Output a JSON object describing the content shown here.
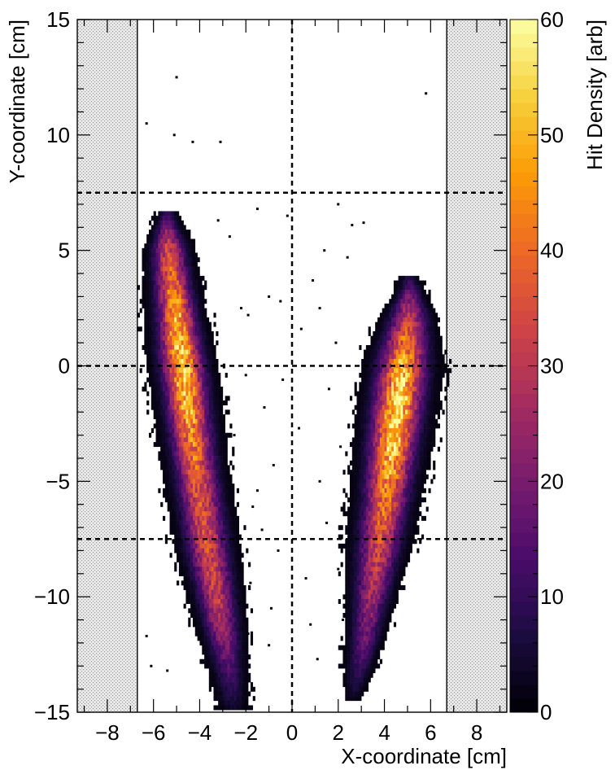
{
  "chart_data": {
    "type": "heatmap",
    "title": "",
    "xlabel": "X-coordinate [cm]",
    "ylabel": "Y-coordinate [cm]",
    "xlim": [
      -9.3,
      9.3
    ],
    "ylim": [
      -15,
      15
    ],
    "x_ticks": [
      -8,
      -6,
      -4,
      -2,
      0,
      2,
      4,
      6,
      8
    ],
    "y_ticks": [
      -15,
      -10,
      -5,
      0,
      5,
      10,
      15
    ],
    "colorbar": {
      "label": "Hit Density [arb]",
      "range": [
        0,
        60
      ],
      "ticks": [
        0,
        10,
        20,
        30,
        40,
        50,
        60
      ],
      "colormap": "inferno",
      "colors": [
        "#000004",
        "#1b0c41",
        "#4a0c6b",
        "#781c6d",
        "#a52c60",
        "#cf4446",
        "#ed6925",
        "#fb9b06",
        "#f7d13d",
        "#fcffa4"
      ]
    },
    "excluded_regions": [
      {
        "x": [
          -9.3,
          -6.7
        ],
        "fill": "dotted grey"
      },
      {
        "x": [
          6.7,
          9.3
        ],
        "fill": "dotted grey"
      }
    ],
    "reference_lines": {
      "vertical_x": [
        0
      ],
      "horizontal_y": [
        7.5,
        0,
        -7.5
      ],
      "style": "dashed"
    },
    "bin_size": [
      0.1,
      0.2
    ],
    "seed": 7,
    "bands": [
      {
        "name": "left",
        "spine": [
          {
            "y": 6.5,
            "x": -5.45
          },
          {
            "y": 6.0,
            "x": -5.45
          },
          {
            "y": 4.0,
            "x": -5.3
          },
          {
            "y": 2.0,
            "x": -5.05
          },
          {
            "y": 0.0,
            "x": -4.8
          },
          {
            "y": -2.0,
            "x": -4.55
          },
          {
            "y": -4.0,
            "x": -4.3
          },
          {
            "y": -6.0,
            "x": -4.0
          },
          {
            "y": -8.0,
            "x": -3.7
          },
          {
            "y": -10.0,
            "x": -3.35
          },
          {
            "y": -12.0,
            "x": -3.0
          },
          {
            "y": -14.0,
            "x": -2.7
          },
          {
            "y": -15.0,
            "x": -2.6
          }
        ],
        "half_width": [
          {
            "y": 6.5,
            "w": 0.35
          },
          {
            "y": 5.0,
            "w": 0.7
          },
          {
            "y": 0.0,
            "w": 0.9
          },
          {
            "y": -8.0,
            "w": 0.9
          },
          {
            "y": -15.0,
            "w": 0.55
          }
        ],
        "peak": [
          {
            "y": 6.5,
            "v": 10
          },
          {
            "y": 5.0,
            "v": 34
          },
          {
            "y": 2.0,
            "v": 48
          },
          {
            "y": 0.0,
            "v": 55
          },
          {
            "y": -2.0,
            "v": 48
          },
          {
            "y": -5.0,
            "v": 36
          },
          {
            "y": -8.0,
            "v": 34
          },
          {
            "y": -11.0,
            "v": 28
          },
          {
            "y": -13.0,
            "v": 15
          },
          {
            "y": -15.0,
            "v": 4
          }
        ]
      },
      {
        "name": "right",
        "spine": [
          {
            "y": 3.7,
            "x": 5.05
          },
          {
            "y": 2.0,
            "x": 5.0
          },
          {
            "y": 0.0,
            "x": 4.75
          },
          {
            "y": -2.0,
            "x": 4.5
          },
          {
            "y": -4.0,
            "x": 4.25
          },
          {
            "y": -6.0,
            "x": 4.0
          },
          {
            "y": -8.0,
            "x": 3.7
          },
          {
            "y": -10.0,
            "x": 3.4
          },
          {
            "y": -12.0,
            "x": 3.1
          },
          {
            "y": -13.5,
            "x": 2.8
          },
          {
            "y": -14.5,
            "x": 2.6
          }
        ],
        "half_width": [
          {
            "y": 3.7,
            "w": 0.35
          },
          {
            "y": 2.0,
            "w": 0.8
          },
          {
            "y": 0.0,
            "w": 1.05
          },
          {
            "y": -4.0,
            "w": 1.0
          },
          {
            "y": -8.0,
            "w": 0.9
          },
          {
            "y": -14.5,
            "w": 0.4
          }
        ],
        "peak": [
          {
            "y": 3.7,
            "v": 8
          },
          {
            "y": 2.0,
            "v": 32
          },
          {
            "y": 0.0,
            "v": 48
          },
          {
            "y": -2.0,
            "v": 58
          },
          {
            "y": -4.0,
            "v": 50
          },
          {
            "y": -6.0,
            "v": 40
          },
          {
            "y": -8.0,
            "v": 33
          },
          {
            "y": -10.0,
            "v": 26
          },
          {
            "y": -12.0,
            "v": 18
          },
          {
            "y": -14.5,
            "v": 3
          }
        ]
      }
    ],
    "outlier_points": [
      [
        -6.3,
        10.5
      ],
      [
        -5.0,
        12.5
      ],
      [
        -5.1,
        10.0
      ],
      [
        -4.3,
        9.7
      ],
      [
        -3.1,
        9.7
      ],
      [
        5.8,
        11.8
      ],
      [
        -0.2,
        6.5
      ],
      [
        2.0,
        7.0
      ],
      [
        -1.5,
        6.8
      ],
      [
        1.4,
        5.0
      ],
      [
        2.6,
        6.1
      ],
      [
        3.1,
        6.2
      ],
      [
        2.4,
        4.7
      ],
      [
        -2.7,
        5.6
      ],
      [
        -3.2,
        6.3
      ],
      [
        0.9,
        3.7
      ],
      [
        -2.2,
        2.5
      ],
      [
        -1.9,
        2.2
      ],
      [
        -1.0,
        3.0
      ],
      [
        1.2,
        2.5
      ],
      [
        -2.5,
        -3.0
      ],
      [
        -1.7,
        -6.1
      ],
      [
        1.2,
        -5.0
      ],
      [
        -0.6,
        -8.0
      ],
      [
        2.0,
        -8.8
      ],
      [
        -1.8,
        -9.4
      ],
      [
        -2.3,
        -10.3
      ],
      [
        0.8,
        -11.2
      ],
      [
        -6.3,
        -11.7
      ],
      [
        -6.1,
        -13.0
      ],
      [
        -5.4,
        -13.2
      ],
      [
        -1.3,
        -7.1
      ],
      [
        0.3,
        -2.7
      ],
      [
        -0.4,
        -0.6
      ],
      [
        1.6,
        -1.0
      ],
      [
        -1.5,
        -5.4
      ],
      [
        -0.8,
        -4.3
      ],
      [
        2.1,
        -3.5
      ],
      [
        0.6,
        -9.2
      ],
      [
        -1.0,
        -12.1
      ],
      [
        1.1,
        -12.7
      ],
      [
        -1.9,
        -11.6
      ],
      [
        -2.0,
        -0.4
      ],
      [
        1.9,
        1.0
      ],
      [
        -0.5,
        2.8
      ],
      [
        0.4,
        1.6
      ],
      [
        -1.2,
        -1.8
      ],
      [
        1.5,
        -6.8
      ],
      [
        -0.9,
        -10.5
      ],
      [
        2.2,
        -11.0
      ]
    ]
  }
}
